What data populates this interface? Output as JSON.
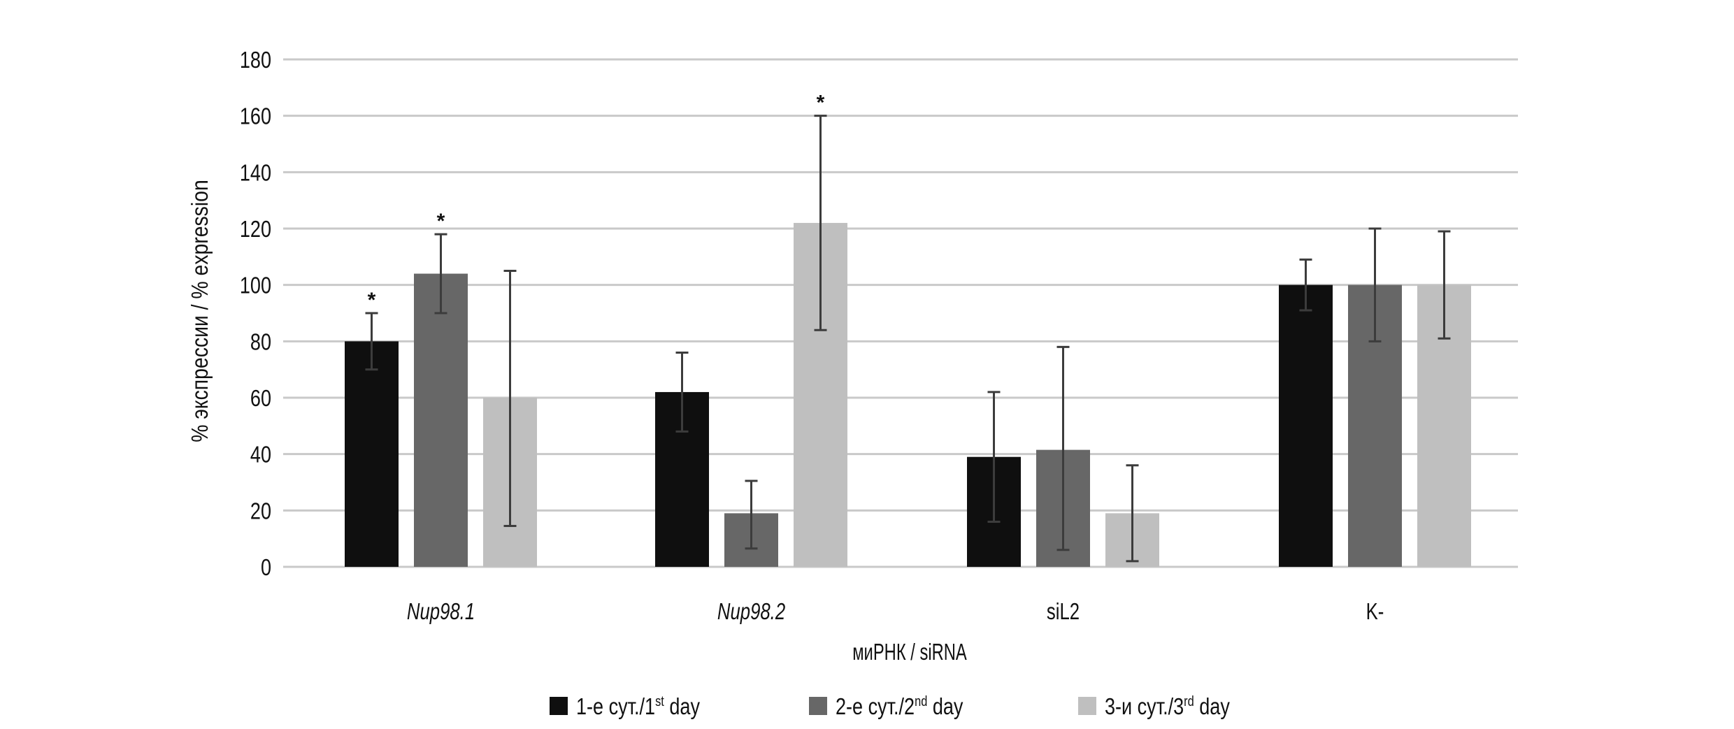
{
  "chart_data": {
    "type": "bar",
    "title": "",
    "xlabel": "миРНК / siRNA",
    "ylabel": "% экспрессии / % expression",
    "ylim": [
      0,
      180
    ],
    "yticks": [
      0,
      20,
      40,
      60,
      80,
      100,
      120,
      140,
      160,
      180
    ],
    "ytick_labels": [
      "0",
      "20",
      "40",
      "60",
      "80",
      "100",
      "120",
      "140",
      "160",
      "180"
    ],
    "grid": true,
    "legend_position": "bottom",
    "categories": [
      {
        "label": "Nup98.1",
        "italic": true
      },
      {
        "label": "Nup98.2",
        "italic": true
      },
      {
        "label": "siL2",
        "italic": false
      },
      {
        "label": "K-",
        "italic": false
      }
    ],
    "series": [
      {
        "name": "1-е сут./1st day",
        "legend_main": "1-е сут./1",
        "legend_sup": "st",
        "legend_tail": " day",
        "color": "#0f0f0f",
        "values": [
          80,
          62,
          39,
          100
        ],
        "error_upper": [
          90,
          76,
          62,
          109
        ],
        "error_lower": [
          70,
          48,
          16,
          91
        ],
        "significant": [
          true,
          false,
          false,
          false
        ]
      },
      {
        "name": "2-е сут./2nd day",
        "legend_main": "2-е сут./2",
        "legend_sup": "nd",
        "legend_tail": " day",
        "color": "#676767",
        "values": [
          104,
          19,
          41.5,
          100
        ],
        "error_upper": [
          118,
          30.5,
          78,
          120
        ],
        "error_lower": [
          90,
          6.5,
          6,
          80
        ],
        "significant": [
          true,
          false,
          false,
          false
        ]
      },
      {
        "name": "3-и сут./3rd day",
        "legend_main": "3-и сут./3",
        "legend_sup": "rd",
        "legend_tail": " day",
        "color": "#bfbfbf",
        "values": [
          60,
          122,
          19,
          100
        ],
        "error_upper": [
          105,
          160,
          36,
          119
        ],
        "error_lower": [
          14.5,
          84,
          2,
          81
        ],
        "significant": [
          false,
          true,
          false,
          false
        ]
      }
    ],
    "significance_marker": "*",
    "colors": {
      "gridline": "#c9c9c9",
      "error_bar": "#3c3c3c",
      "text": "#111111"
    }
  }
}
